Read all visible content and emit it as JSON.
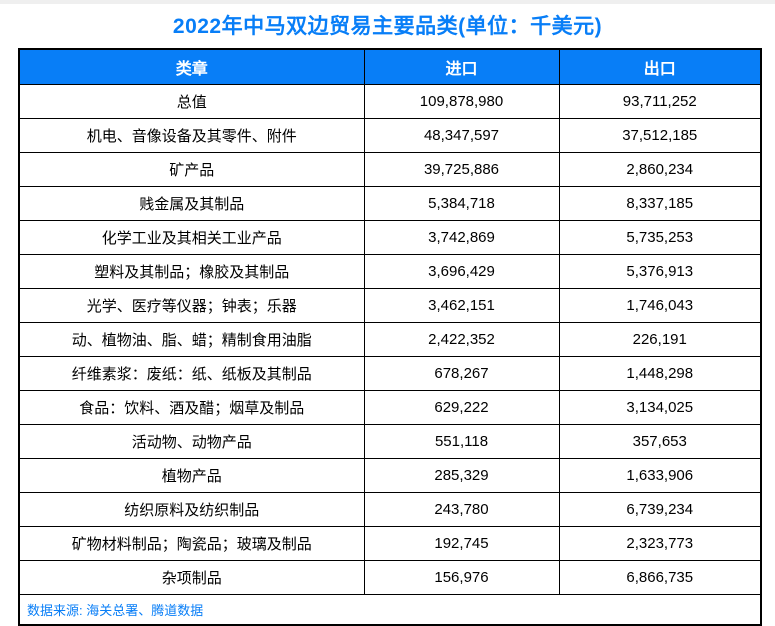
{
  "title": "2022年中马双边贸易主要品类(单位：千美元)",
  "colors": {
    "accent_blue": "#087ef7",
    "header_text": "#ffffff",
    "border": "#000000",
    "top_strip": "#efefef"
  },
  "table": {
    "headers": [
      "类章",
      "进口",
      "出口"
    ],
    "rows": [
      {
        "category": "总值",
        "import": "109,878,980",
        "export": "93,711,252"
      },
      {
        "category": "机电、音像设备及其零件、附件",
        "import": "48,347,597",
        "export": "37,512,185"
      },
      {
        "category": "矿产品",
        "import": "39,725,886",
        "export": "2,860,234"
      },
      {
        "category": "贱金属及其制品",
        "import": "5,384,718",
        "export": "8,337,185"
      },
      {
        "category": "化学工业及其相关工业产品",
        "import": "3,742,869",
        "export": "5,735,253"
      },
      {
        "category": "塑料及其制品；橡胶及其制品",
        "import": "3,696,429",
        "export": "5,376,913"
      },
      {
        "category": "光学、医疗等仪器；钟表；乐器",
        "import": "3,462,151",
        "export": "1,746,043"
      },
      {
        "category": "动、植物油、脂、蜡；精制食用油脂",
        "import": "2,422,352",
        "export": "226,191"
      },
      {
        "category": "纤维素浆：废纸：纸、纸板及其制品",
        "import": "678,267",
        "export": "1,448,298"
      },
      {
        "category": "食品：饮料、酒及醋；烟草及制品",
        "import": "629,222",
        "export": "3,134,025"
      },
      {
        "category": "活动物、动物产品",
        "import": "551,118",
        "export": "357,653"
      },
      {
        "category": "植物产品",
        "import": "285,329",
        "export": "1,633,906"
      },
      {
        "category": "纺织原料及纺织制品",
        "import": "243,780",
        "export": "6,739,234"
      },
      {
        "category": "矿物材料制品；陶瓷品；玻璃及制品",
        "import": "192,745",
        "export": "2,323,773"
      },
      {
        "category": "杂项制品",
        "import": "156,976",
        "export": "6,866,735"
      }
    ],
    "source_note": "数据来源: 海关总署、腾道数据"
  },
  "chart_data": {
    "type": "table",
    "title": "2022年中马双边贸易主要品类(单位：千美元)",
    "unit": "千美元",
    "columns": [
      "类章",
      "进口",
      "出口"
    ],
    "rows": [
      [
        "总值",
        109878980,
        93711252
      ],
      [
        "机电、音像设备及其零件、附件",
        48347597,
        37512185
      ],
      [
        "矿产品",
        39725886,
        2860234
      ],
      [
        "贱金属及其制品",
        5384718,
        8337185
      ],
      [
        "化学工业及其相关工业产品",
        3742869,
        5735253
      ],
      [
        "塑料及其制品；橡胶及其制品",
        3696429,
        5376913
      ],
      [
        "光学、医疗等仪器；钟表；乐器",
        3462151,
        1746043
      ],
      [
        "动、植物油、脂、蜡；精制食用油脂",
        2422352,
        226191
      ],
      [
        "纤维素浆：废纸：纸、纸板及其制品",
        678267,
        1448298
      ],
      [
        "食品：饮料、酒及醋；烟草及制品",
        629222,
        3134025
      ],
      [
        "活动物、动物产品",
        551118,
        357653
      ],
      [
        "植物产品",
        285329,
        1633906
      ],
      [
        "纺织原料及纺织制品",
        243780,
        6739234
      ],
      [
        "矿物材料制品；陶瓷品；玻璃及制品",
        192745,
        2323773
      ],
      [
        "杂项制品",
        156976,
        6866735
      ]
    ],
    "source_note": "数据来源: 海关总署、腾道数据"
  }
}
